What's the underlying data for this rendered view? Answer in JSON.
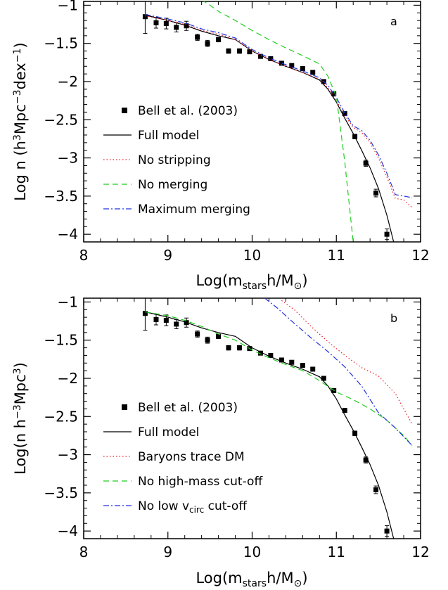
{
  "chart_data": [
    {
      "type": "line",
      "panel_label": "a",
      "xlabel": "Log(m_stars h/M_⊙)",
      "ylabel": "Log n (h³Mpc⁻³dex⁻¹)",
      "xlim": [
        8,
        12
      ],
      "ylim": [
        -4.1,
        -0.95
      ],
      "x_ticks": [
        "8",
        "9",
        "10",
        "11",
        "12"
      ],
      "y_ticks": [
        "-1",
        "-1.5",
        "-2",
        "-2.5",
        "-3",
        "-3.5",
        "-4"
      ],
      "legend_position": "lower-left",
      "series": [
        {
          "name": "Bell et al. (2003)",
          "style": "points",
          "color": "#000000",
          "x": [
            8.73,
            8.86,
            8.98,
            9.1,
            9.22,
            9.35,
            9.47,
            9.6,
            9.72,
            9.85,
            9.97,
            10.1,
            10.22,
            10.35,
            10.47,
            10.6,
            10.72,
            10.85,
            10.97,
            11.1,
            11.22,
            11.35,
            11.47,
            11.6
          ],
          "y": [
            -1.15,
            -1.23,
            -1.24,
            -1.29,
            -1.27,
            -1.42,
            -1.5,
            -1.45,
            -1.6,
            -1.6,
            -1.61,
            -1.67,
            -1.7,
            -1.76,
            -1.79,
            -1.83,
            -1.88,
            -2.0,
            -2.16,
            -2.42,
            -2.72,
            -3.07,
            -3.46,
            -4.0
          ],
          "yerr": [
            0.22,
            0.07,
            0.07,
            0.06,
            0.06,
            0.04,
            0.04,
            0.03,
            0.03,
            0.03,
            0.02,
            0.02,
            0.02,
            0.02,
            0.02,
            0.02,
            0.02,
            0.02,
            0.02,
            0.02,
            0.03,
            0.04,
            0.05,
            0.07
          ]
        },
        {
          "name": "Full model",
          "style": "solid",
          "color": "#000000",
          "x": [
            8.73,
            9.0,
            9.2,
            9.4,
            9.6,
            9.8,
            10.0,
            10.2,
            10.4,
            10.6,
            10.8,
            10.9,
            11.0,
            11.1,
            11.2,
            11.3,
            11.4,
            11.5,
            11.6,
            11.68
          ],
          "y": [
            -1.13,
            -1.2,
            -1.26,
            -1.34,
            -1.4,
            -1.45,
            -1.6,
            -1.71,
            -1.8,
            -1.88,
            -1.98,
            -2.1,
            -2.27,
            -2.48,
            -2.68,
            -2.9,
            -3.13,
            -3.4,
            -3.75,
            -4.1
          ]
        },
        {
          "name": "No stripping",
          "style": "dotted",
          "color": "#e8202a",
          "x": [
            8.73,
            9.0,
            9.2,
            9.4,
            9.6,
            9.8,
            10.0,
            10.2,
            10.4,
            10.6,
            10.8,
            10.9,
            11.0,
            11.1,
            11.2,
            11.3,
            11.4,
            11.5,
            11.6,
            11.7,
            11.8,
            11.9
          ],
          "y": [
            -1.14,
            -1.2,
            -1.25,
            -1.33,
            -1.38,
            -1.45,
            -1.6,
            -1.71,
            -1.8,
            -1.88,
            -1.97,
            -2.08,
            -2.25,
            -2.44,
            -2.6,
            -2.67,
            -2.8,
            -3.0,
            -3.25,
            -3.53,
            -3.55,
            -3.65
          ]
        },
        {
          "name": "No merging",
          "style": "dashed",
          "color": "#22cc22",
          "x": [
            9.4,
            9.5,
            9.6,
            9.8,
            10.0,
            10.2,
            10.4,
            10.6,
            10.8,
            10.9,
            11.0,
            11.1,
            11.2
          ],
          "y": [
            -0.93,
            -1.0,
            -1.08,
            -1.2,
            -1.33,
            -1.45,
            -1.56,
            -1.66,
            -1.77,
            -1.93,
            -2.2,
            -3.05,
            -4.1
          ]
        },
        {
          "name": "Maximum merging",
          "style": "dashdot",
          "color": "#2233dd",
          "x": [
            8.73,
            9.0,
            9.2,
            9.4,
            9.6,
            9.8,
            10.0,
            10.2,
            10.4,
            10.6,
            10.8,
            10.9,
            11.0,
            11.1,
            11.2,
            11.3,
            11.4,
            11.5,
            11.6,
            11.7,
            11.8,
            11.9
          ],
          "y": [
            -1.12,
            -1.18,
            -1.23,
            -1.31,
            -1.36,
            -1.43,
            -1.58,
            -1.69,
            -1.78,
            -1.86,
            -1.95,
            -2.05,
            -2.21,
            -2.41,
            -2.58,
            -2.64,
            -2.77,
            -2.96,
            -3.2,
            -3.48,
            -3.5,
            -3.52
          ]
        }
      ]
    },
    {
      "type": "line",
      "panel_label": "b",
      "xlabel": "Log(m_stars h/M_⊙)",
      "ylabel": "Log(n h⁻³Mpc³)",
      "xlim": [
        8,
        12
      ],
      "ylim": [
        -4.1,
        -0.95
      ],
      "x_ticks": [
        "8",
        "9",
        "10",
        "11",
        "12"
      ],
      "y_ticks": [
        "-1",
        "-1.5",
        "-2",
        "-2.5",
        "-3",
        "-3.5",
        "-4"
      ],
      "legend_position": "lower-left",
      "series": [
        {
          "name": "Bell et al. (2003)",
          "style": "points",
          "color": "#000000",
          "x": [
            8.73,
            8.86,
            8.98,
            9.1,
            9.22,
            9.35,
            9.47,
            9.6,
            9.72,
            9.85,
            9.97,
            10.1,
            10.22,
            10.35,
            10.47,
            10.6,
            10.72,
            10.85,
            10.97,
            11.1,
            11.22,
            11.35,
            11.47,
            11.6
          ],
          "y": [
            -1.15,
            -1.23,
            -1.24,
            -1.29,
            -1.27,
            -1.42,
            -1.5,
            -1.45,
            -1.6,
            -1.6,
            -1.61,
            -1.67,
            -1.7,
            -1.76,
            -1.79,
            -1.83,
            -1.88,
            -2.0,
            -2.16,
            -2.42,
            -2.72,
            -3.07,
            -3.46,
            -4.0
          ],
          "yerr": [
            0.22,
            0.07,
            0.07,
            0.06,
            0.06,
            0.04,
            0.04,
            0.03,
            0.03,
            0.03,
            0.02,
            0.02,
            0.02,
            0.02,
            0.02,
            0.02,
            0.02,
            0.02,
            0.02,
            0.02,
            0.03,
            0.04,
            0.05,
            0.07
          ]
        },
        {
          "name": "Full model",
          "style": "solid",
          "color": "#000000",
          "x": [
            8.73,
            9.0,
            9.2,
            9.4,
            9.6,
            9.8,
            10.0,
            10.2,
            10.4,
            10.6,
            10.8,
            10.9,
            11.0,
            11.1,
            11.2,
            11.3,
            11.4,
            11.5,
            11.6,
            11.68
          ],
          "y": [
            -1.13,
            -1.2,
            -1.26,
            -1.34,
            -1.4,
            -1.45,
            -1.6,
            -1.71,
            -1.8,
            -1.88,
            -1.98,
            -2.1,
            -2.27,
            -2.48,
            -2.68,
            -2.9,
            -3.13,
            -3.4,
            -3.75,
            -4.1
          ]
        },
        {
          "name": "Baryons trace DM",
          "style": "dotted",
          "color": "#e8202a",
          "x": [
            10.35,
            10.5,
            10.7,
            10.9,
            11.1,
            11.3,
            11.5,
            11.7,
            11.9
          ],
          "y": [
            -0.98,
            -1.1,
            -1.32,
            -1.52,
            -1.7,
            -1.86,
            -1.97,
            -2.2,
            -2.6
          ]
        },
        {
          "name": "No high-mass cut-off",
          "style": "dashed",
          "color": "#22cc22",
          "x": [
            8.73,
            9.0,
            9.2,
            9.4,
            9.6,
            9.8,
            10.0,
            10.2,
            10.4,
            10.6,
            10.8,
            11.0,
            11.2,
            11.4,
            11.6,
            11.8,
            11.9
          ],
          "y": [
            -1.13,
            -1.18,
            -1.24,
            -1.32,
            -1.42,
            -1.5,
            -1.63,
            -1.73,
            -1.82,
            -1.9,
            -2.03,
            -2.18,
            -2.28,
            -2.4,
            -2.55,
            -2.75,
            -2.88
          ]
        },
        {
          "name": "No low v_circ cut-off",
          "style": "dashdot",
          "color": "#2233dd",
          "x": [
            10.15,
            10.3,
            10.5,
            10.7,
            10.9,
            11.1,
            11.3,
            11.5,
            11.7,
            11.9
          ],
          "y": [
            -0.95,
            -1.08,
            -1.28,
            -1.47,
            -1.65,
            -1.85,
            -2.1,
            -2.45,
            -2.65,
            -2.88
          ]
        }
      ]
    }
  ]
}
